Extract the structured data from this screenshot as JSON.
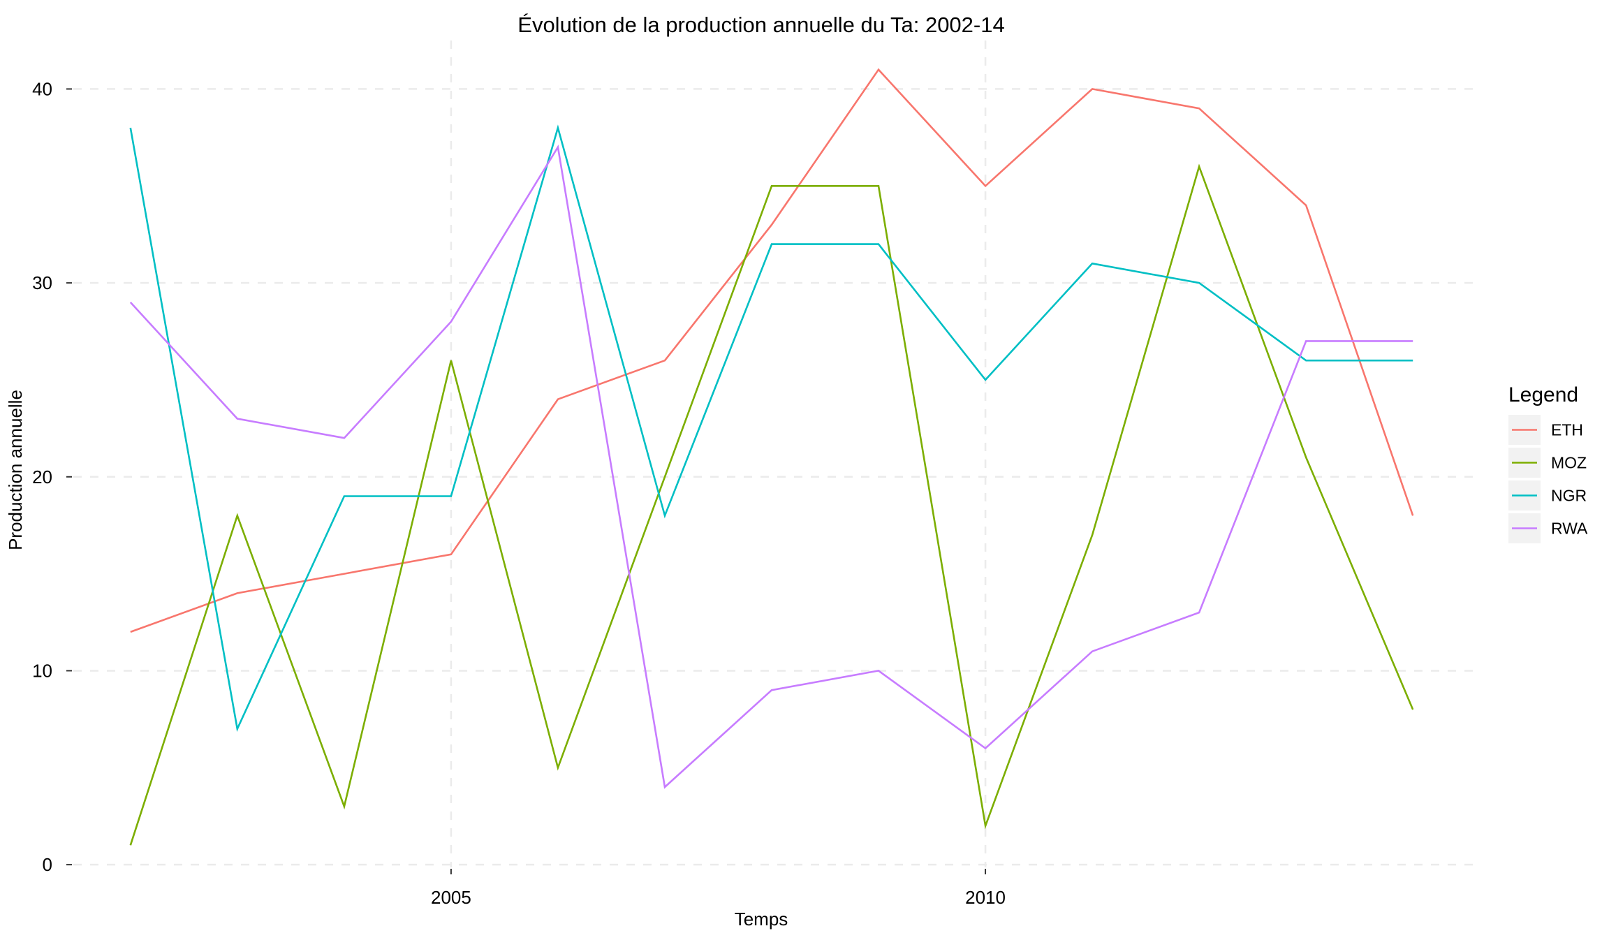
{
  "chart_data": {
    "type": "line",
    "title": "Évolution de la production annuelle du Ta: 2002-14",
    "xlabel": "Temps",
    "ylabel": "Production annuelle",
    "x": [
      2002,
      2003,
      2004,
      2005,
      2006,
      2007,
      2008,
      2009,
      2010,
      2011,
      2012,
      2013,
      2014
    ],
    "xlim": [
      2001.4,
      2014.6
    ],
    "ylim": [
      -0.5,
      42.5
    ],
    "x_ticks": [
      2005,
      2010
    ],
    "y_ticks": [
      0,
      10,
      20,
      30,
      40
    ],
    "x_tick_labels": [
      "2005",
      "2010"
    ],
    "y_tick_labels": [
      "0",
      "10",
      "20",
      "30",
      "40"
    ],
    "grid": true,
    "legend": {
      "title": "Legend",
      "position": "right"
    },
    "series": [
      {
        "name": "ETH",
        "color": "#F8766D",
        "values": [
          12,
          14,
          15,
          16,
          24,
          26,
          33,
          41,
          35,
          40,
          39,
          34,
          18
        ]
      },
      {
        "name": "MOZ",
        "color": "#7CAE00",
        "values": [
          1,
          18,
          3,
          26,
          5,
          20,
          35,
          35,
          2,
          17,
          36,
          21,
          8
        ]
      },
      {
        "name": "NGR",
        "color": "#00BFC4",
        "values": [
          38,
          7,
          19,
          19,
          38,
          18,
          32,
          32,
          25,
          31,
          30,
          26,
          26
        ]
      },
      {
        "name": "RWA",
        "color": "#C77CFF",
        "values": [
          29,
          23,
          22,
          28,
          37,
          4,
          9,
          10,
          6,
          11,
          13,
          27,
          27
        ]
      }
    ]
  }
}
